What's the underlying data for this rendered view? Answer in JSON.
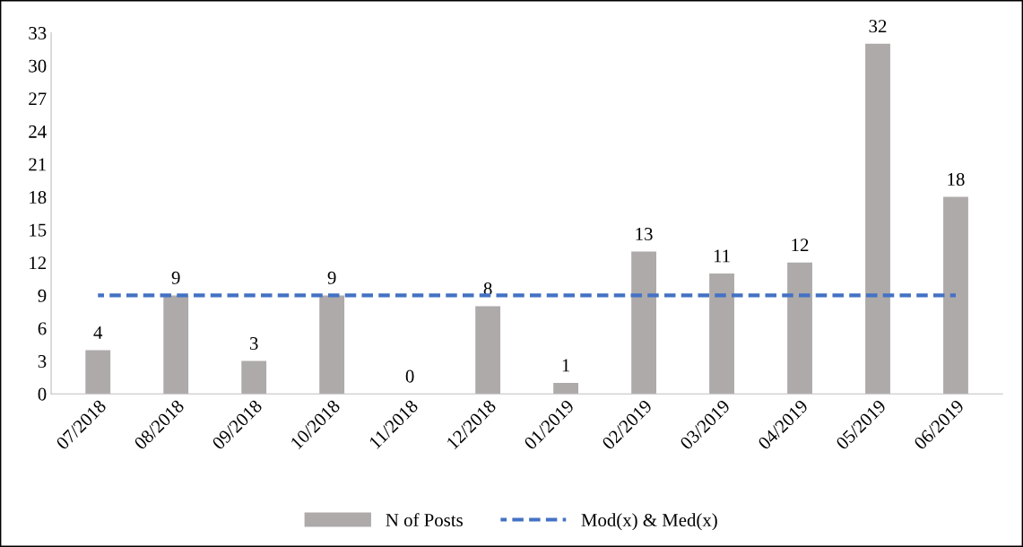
{
  "chart_data": {
    "type": "bar",
    "categories": [
      "07/2018",
      "08/2018",
      "09/2018",
      "10/2018",
      "11/2018",
      "12/2018",
      "01/2019",
      "02/2019",
      "03/2019",
      "04/2019",
      "05/2019",
      "06/2019"
    ],
    "series": [
      {
        "name": "N of Posts",
        "color": "#aeaaaa",
        "values": [
          4,
          9,
          3,
          9,
          0,
          8,
          1,
          13,
          11,
          12,
          32,
          18
        ],
        "value_labels": [
          "4",
          "9",
          "3",
          "9",
          "0",
          "8",
          "1",
          "13",
          "11",
          "12",
          "32",
          "18"
        ]
      },
      {
        "name": "Mod(x) & Med(x)",
        "type": "line",
        "color": "#4472c4",
        "line_style": "dashed",
        "marker": "none",
        "values": [
          9,
          9,
          9,
          9,
          9,
          9,
          9,
          9,
          9,
          9,
          9,
          9
        ]
      }
    ],
    "ylim": [
      0,
      33
    ],
    "yticks": [
      0,
      3,
      6,
      9,
      12,
      15,
      18,
      21,
      24,
      27,
      30,
      33
    ],
    "grid": false,
    "legend": "bottom"
  }
}
